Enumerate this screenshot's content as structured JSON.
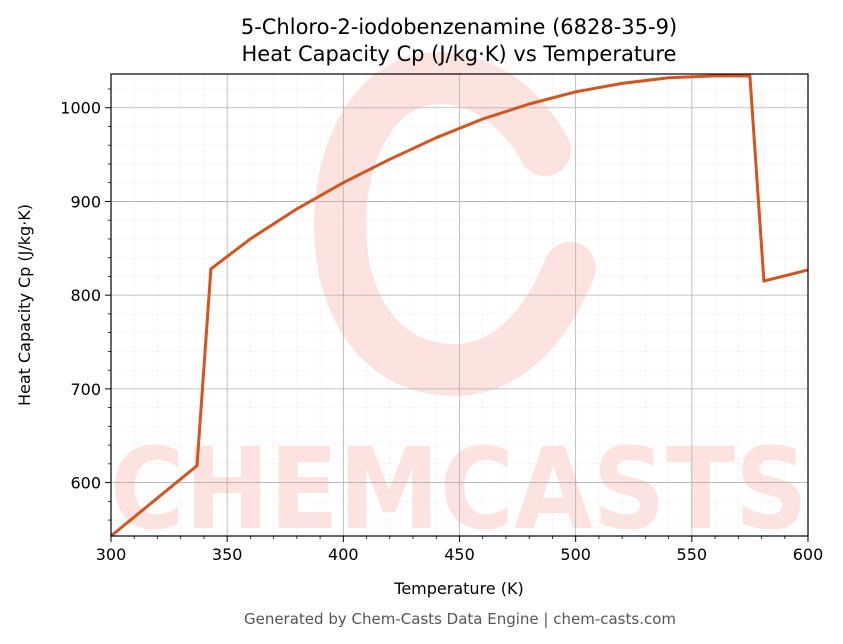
{
  "chart_data": {
    "type": "line",
    "title": "5-Chloro-2-iodobenzenamine (6828-35-9)",
    "subtitle": "Heat Capacity Cp (J/kg·K) vs Temperature",
    "xlabel": "Temperature (K)",
    "ylabel": "Heat Capacity Cp (J/kg·K)",
    "xlim": [
      300,
      600
    ],
    "ylim": [
      543,
      1036
    ],
    "xticks": [
      300,
      350,
      400,
      450,
      500,
      550,
      600
    ],
    "yticks": [
      600,
      700,
      800,
      900,
      1000
    ],
    "grid": true,
    "legend": "none",
    "line_color": "#d4541f",
    "series": [
      {
        "x": [
          300,
          337,
          343,
          360,
          380,
          400,
          420,
          440,
          460,
          480,
          500,
          520,
          540,
          560,
          575,
          581,
          600
        ],
        "values": [
          543,
          618,
          828,
          860,
          892,
          920,
          945,
          968,
          988,
          1004,
          1017,
          1026,
          1032,
          1034,
          1034,
          815,
          827
        ]
      }
    ]
  },
  "footer": "Generated by Chem-Casts Data Engine | chem-casts.com",
  "watermark": "CHEMCASTS",
  "watermark_color": "#fde3df"
}
